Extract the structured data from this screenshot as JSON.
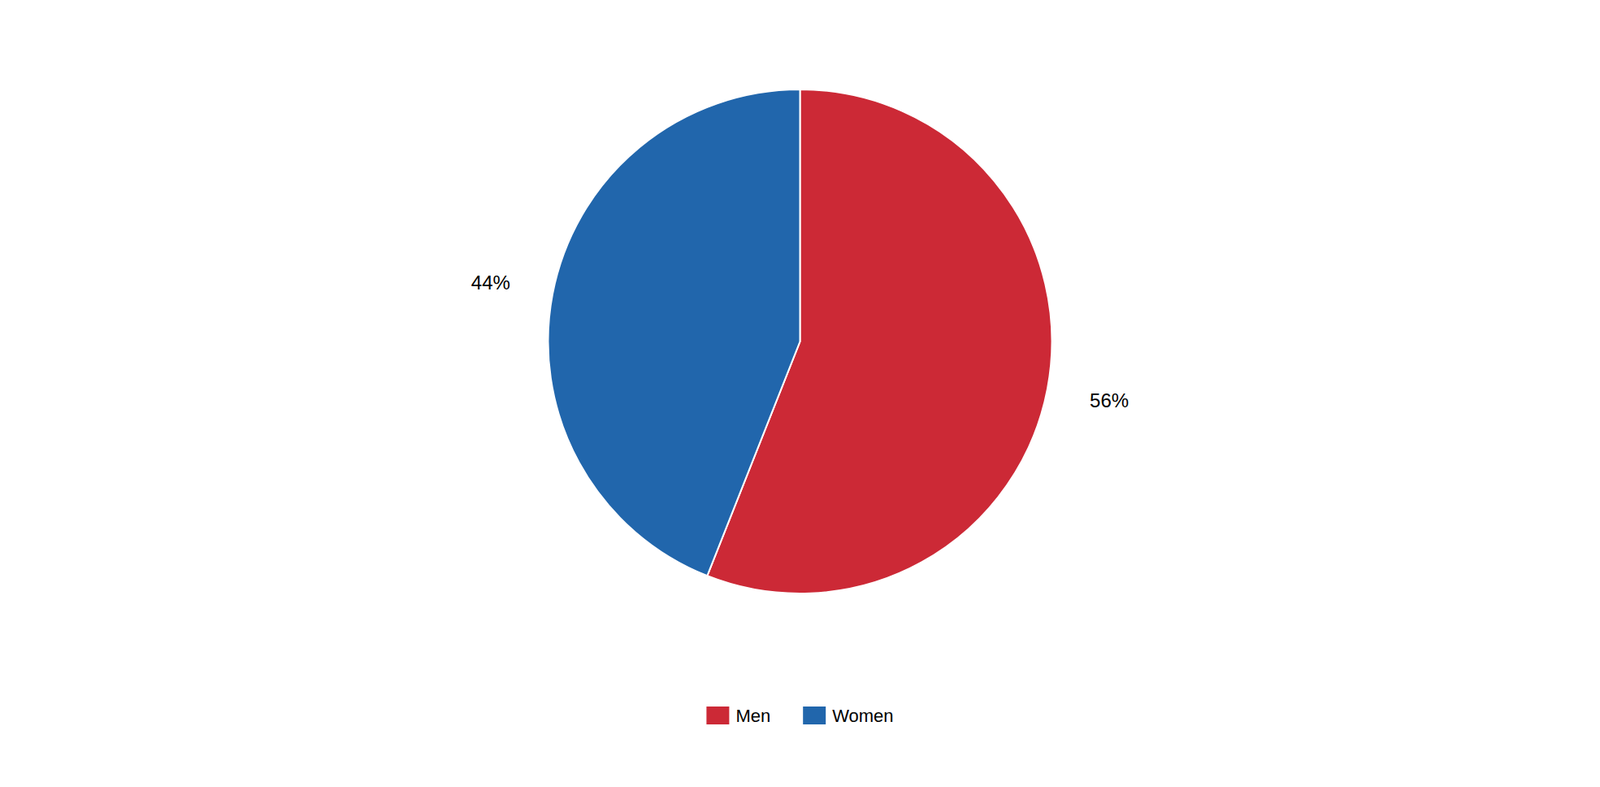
{
  "chart_data": {
    "type": "pie",
    "categories": [
      "Men",
      "Women"
    ],
    "values": [
      56,
      44
    ],
    "value_labels": [
      "56%",
      "44%"
    ],
    "colors": [
      "#CC2936",
      "#2166AC"
    ],
    "data_labels": true,
    "legend": "bottom"
  }
}
